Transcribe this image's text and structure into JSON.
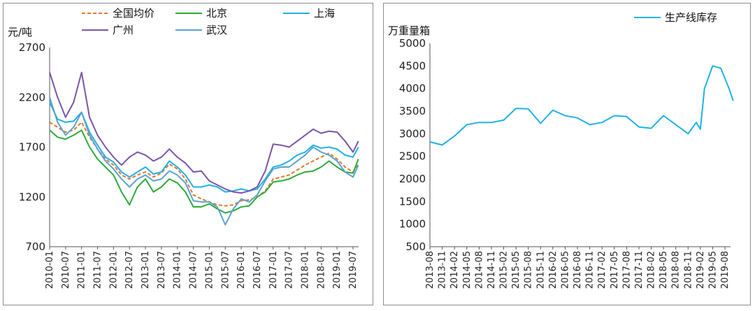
{
  "chart_data": [
    {
      "type": "line",
      "ylabel": "元/吨",
      "ylim": [
        700,
        2700
      ],
      "yticks": [
        700,
        1200,
        1700,
        2200,
        2700
      ],
      "xticks": [
        "2010-01",
        "2010-07",
        "2011-01",
        "2011-07",
        "2012-01",
        "2012-07",
        "2013-01",
        "2013-07",
        "2014-01",
        "2014-07",
        "2015-01",
        "2015-07",
        "2016-01",
        "2016-07",
        "2017-01",
        "2017-07",
        "2018-01",
        "2018-07",
        "2019-01",
        "2019-07"
      ],
      "x": [
        "2010-01",
        "2010-04",
        "2010-07",
        "2010-10",
        "2011-01",
        "2011-04",
        "2011-07",
        "2011-10",
        "2012-01",
        "2012-04",
        "2012-07",
        "2012-10",
        "2013-01",
        "2013-04",
        "2013-07",
        "2013-10",
        "2014-01",
        "2014-04",
        "2014-07",
        "2014-10",
        "2015-01",
        "2015-04",
        "2015-07",
        "2015-10",
        "2016-01",
        "2016-04",
        "2016-07",
        "2016-10",
        "2017-01",
        "2017-04",
        "2017-07",
        "2017-10",
        "2018-01",
        "2018-04",
        "2018-07",
        "2018-10",
        "2019-01",
        "2019-04",
        "2019-07",
        "2019-09"
      ],
      "legend": "top",
      "series": [
        {
          "name": "全国均价",
          "color": "#e0782c",
          "dash": true,
          "values": [
            1950,
            1900,
            1850,
            1870,
            1950,
            1800,
            1680,
            1580,
            1520,
            1420,
            1380,
            1420,
            1450,
            1400,
            1440,
            1530,
            1480,
            1380,
            1220,
            1180,
            1150,
            1120,
            1110,
            1120,
            1160,
            1170,
            1200,
            1260,
            1380,
            1400,
            1420,
            1470,
            1520,
            1560,
            1600,
            1640,
            1580,
            1500,
            1450,
            1530
          ]
        },
        {
          "name": "北京",
          "color": "#2daa3c",
          "dash": false,
          "values": [
            1870,
            1800,
            1780,
            1820,
            1870,
            1700,
            1580,
            1500,
            1420,
            1250,
            1120,
            1300,
            1380,
            1250,
            1300,
            1380,
            1340,
            1250,
            1100,
            1100,
            1130,
            1080,
            1040,
            1060,
            1100,
            1110,
            1200,
            1250,
            1350,
            1360,
            1380,
            1420,
            1450,
            1460,
            1500,
            1560,
            1500,
            1450,
            1440,
            1580
          ]
        },
        {
          "name": "上海",
          "color": "#1fb1e6",
          "dash": false,
          "values": [
            2150,
            1980,
            1950,
            1960,
            2050,
            1850,
            1720,
            1600,
            1550,
            1450,
            1400,
            1450,
            1500,
            1430,
            1450,
            1560,
            1500,
            1420,
            1300,
            1300,
            1320,
            1300,
            1250,
            1260,
            1280,
            1260,
            1280,
            1380,
            1500,
            1520,
            1560,
            1620,
            1650,
            1720,
            1690,
            1700,
            1680,
            1620,
            1600,
            1700
          ]
        },
        {
          "name": "广州",
          "color": "#7b55a8",
          "dash": false,
          "values": [
            2450,
            2200,
            2000,
            2150,
            2450,
            2000,
            1820,
            1700,
            1600,
            1520,
            1600,
            1650,
            1620,
            1560,
            1600,
            1680,
            1600,
            1540,
            1450,
            1460,
            1360,
            1320,
            1280,
            1250,
            1240,
            1260,
            1300,
            1460,
            1730,
            1720,
            1700,
            1760,
            1820,
            1880,
            1840,
            1860,
            1850,
            1760,
            1650,
            1760
          ]
        },
        {
          "name": "武汉",
          "color": "#5ba3cf",
          "dash": false,
          "values": [
            2200,
            1950,
            1820,
            1900,
            2050,
            1820,
            1680,
            1560,
            1480,
            1380,
            1300,
            1380,
            1420,
            1360,
            1380,
            1460,
            1420,
            1340,
            1160,
            1150,
            1150,
            1100,
            920,
            1080,
            1180,
            1150,
            1220,
            1360,
            1480,
            1500,
            1500,
            1560,
            1620,
            1700,
            1650,
            1620,
            1560,
            1450,
            1400,
            1520
          ]
        }
      ]
    },
    {
      "type": "line",
      "ylabel": "万重量箱",
      "ylim": [
        500,
        5000
      ],
      "yticks": [
        500,
        1000,
        1500,
        2000,
        2500,
        3000,
        3500,
        4000,
        4500,
        5000
      ],
      "xticks": [
        "2013-08",
        "2013-11",
        "2014-02",
        "2014-05",
        "2014-08",
        "2014-11",
        "2015-02",
        "2015-05",
        "2015-08",
        "2015-11",
        "2016-02",
        "2016-05",
        "2016-08",
        "2016-11",
        "2017-02",
        "2017-05",
        "2017-08",
        "2017-11",
        "2018-02",
        "2018-05",
        "2018-08",
        "2018-11",
        "2019-02",
        "2019-05",
        "2019-08"
      ],
      "x": [
        "2013-08",
        "2013-11",
        "2014-02",
        "2014-05",
        "2014-08",
        "2014-11",
        "2015-02",
        "2015-05",
        "2015-08",
        "2015-11",
        "2016-02",
        "2016-05",
        "2016-08",
        "2016-11",
        "2017-02",
        "2017-05",
        "2017-08",
        "2017-11",
        "2018-02",
        "2018-05",
        "2018-08",
        "2018-11",
        "2019-01",
        "2019-02",
        "2019-03",
        "2019-05",
        "2019-07",
        "2019-09",
        "2019-10"
      ],
      "legend": "top-right",
      "series": [
        {
          "name": "生产线库存",
          "color": "#1fb1e6",
          "dash": false,
          "values": [
            2820,
            2750,
            2950,
            3200,
            3250,
            3250,
            3300,
            3560,
            3550,
            3230,
            3520,
            3400,
            3350,
            3200,
            3250,
            3400,
            3380,
            3150,
            3120,
            3400,
            3200,
            3000,
            3250,
            3100,
            4000,
            4500,
            4450,
            4000,
            3730
          ]
        }
      ]
    }
  ]
}
